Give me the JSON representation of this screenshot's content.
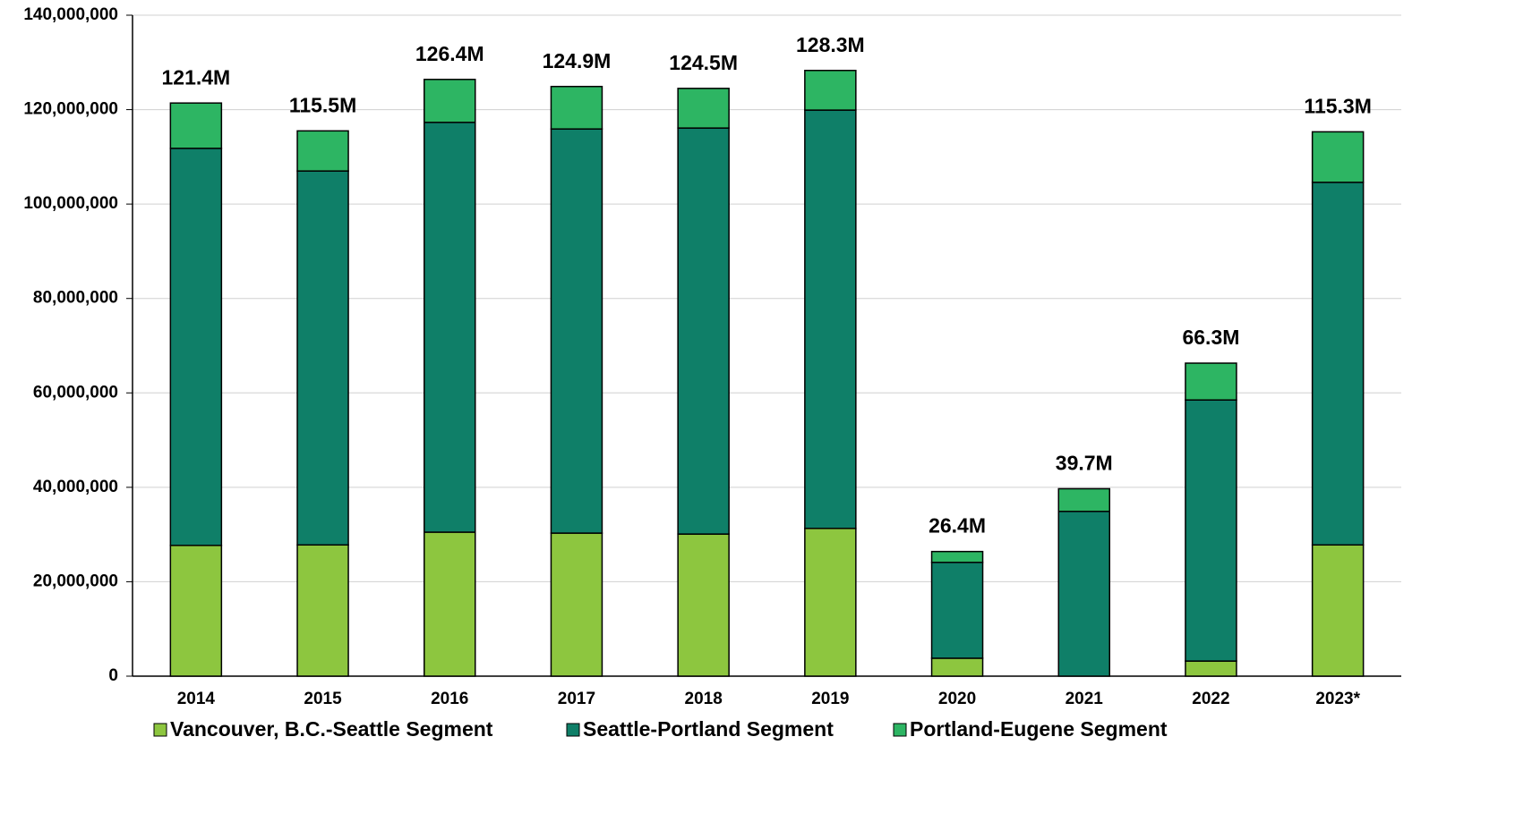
{
  "chart_data": {
    "type": "stacked_bar",
    "categories": [
      "2014",
      "2015",
      "2016",
      "2017",
      "2018",
      "2019",
      "2020",
      "2021",
      "2022",
      "2023*"
    ],
    "series": [
      {
        "name": "Vancouver, B.C.-Seattle Segment",
        "color": "#8dc63f",
        "values": [
          27700000,
          27800000,
          30500000,
          30300000,
          30100000,
          31300000,
          3800000,
          0,
          3200000,
          27800000
        ]
      },
      {
        "name": "Seattle-Portland Segment",
        "color": "#0f7f68",
        "values": [
          84100000,
          79200000,
          86800000,
          85600000,
          86000000,
          88600000,
          20300000,
          34900000,
          55300000,
          76800000
        ]
      },
      {
        "name": "Portland-Eugene Segment",
        "color": "#2db563",
        "values": [
          9600000,
          8500000,
          9100000,
          9000000,
          8400000,
          8400000,
          2300000,
          4800000,
          7800000,
          10700000
        ]
      }
    ],
    "totals": [
      121400000,
      115500000,
      126400000,
      124900000,
      124500000,
      128300000,
      26400000,
      39700000,
      66300000,
      115300000
    ],
    "total_labels": [
      "121.4M",
      "115.5M",
      "126.4M",
      "124.9M",
      "124.5M",
      "128.3M",
      "26.4M",
      "39.7M",
      "66.3M",
      "115.3M"
    ],
    "ylim": [
      0,
      140000000
    ],
    "yticks": [
      0,
      {
        "value": 20000000,
        "label": "20,000,000"
      },
      {
        "value": 40000000,
        "label": "40,000,000"
      },
      {
        "value": 60000000,
        "label": "60,000,000"
      },
      {
        "value": 80000000,
        "label": "80,000,000"
      },
      {
        "value": 100000000,
        "label": "100,000,000"
      },
      {
        "value": 120000000,
        "label": "120,000,000"
      },
      {
        "value": 140000000,
        "label": "140,000,000"
      }
    ],
    "grid": true,
    "legend": "bottom"
  }
}
